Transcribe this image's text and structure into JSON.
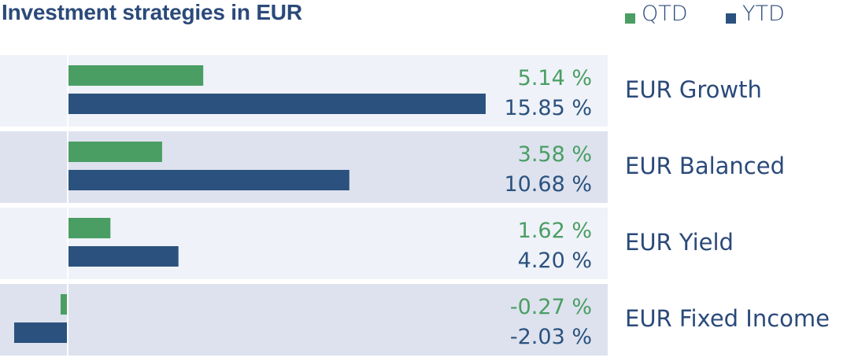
{
  "colors": {
    "qtd": "#4a9e63",
    "ytd": "#2b527e",
    "row_light": "#eff2f8",
    "row_dark": "#dde2ee",
    "text": "#2b4a7a"
  },
  "chart_data": {
    "type": "bar",
    "orientation": "horizontal",
    "title": "Investment strategies in EUR",
    "categories": [
      "EUR Growth",
      "EUR Balanced",
      "EUR Yield",
      "EUR Fixed Income"
    ],
    "series": [
      {
        "name": "QTD",
        "values": [
          5.14,
          3.58,
          1.62,
          -0.27
        ],
        "labels": [
          "5.14 %",
          "3.58 %",
          "1.62 %",
          "-0.27 %"
        ]
      },
      {
        "name": "YTD",
        "values": [
          15.85,
          10.68,
          4.2,
          -2.03
        ],
        "labels": [
          "15.85 %",
          "10.68 %",
          "4.20 %",
          "-2.03 %"
        ]
      }
    ],
    "legend_position": "top-right",
    "grid": false
  }
}
